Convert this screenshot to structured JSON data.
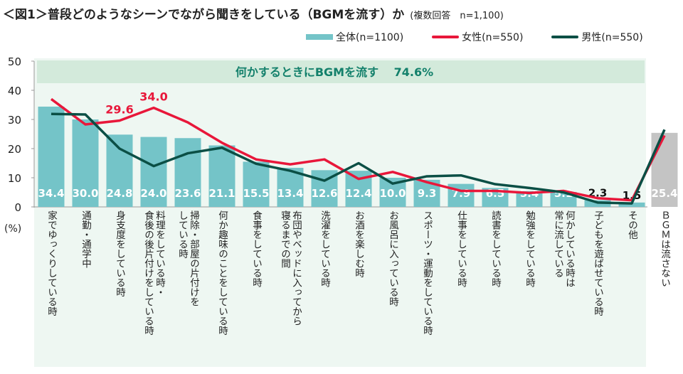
{
  "title": "＜図1＞普段どのようなシーンでながら聞きをしている（BGMを流す）か",
  "subtitle": "(複数回答　n=1,100)",
  "chart_data": {
    "type": "bar+line",
    "title": "＜図1＞普段どのようなシーンでながら聞きをしている（BGMを流す）か",
    "subtitle": "(複数回答　n=1,100)",
    "ylabel": "(%)",
    "ylim": [
      0,
      50
    ],
    "yticks": [
      0,
      10,
      20,
      30,
      40,
      50
    ],
    "legend_position": "top-right",
    "banner": "何かするときにBGMを流す　 74.6%",
    "categories": [
      "家でゆっくりしている時",
      "通勤・通学中",
      "身支度をしている時",
      "料理をしている時・\n食後の後片付けをしている時",
      "掃除・部屋の片付けを\nしている時",
      "何か趣味のことをしている時",
      "食事をしている時",
      "布団やベッドに入ってから\n寝るまでの間",
      "洗濯をしている時",
      "お酒を楽しむ時",
      "お風呂に入っている時",
      "スポーツ・運動をしている時",
      "仕事をしている時",
      "読書をしている時",
      "勉強をしている時",
      "何かしている時は\n常に流している",
      "子どもを遊ばせている時",
      "その他",
      "ＢＧＭは流さない"
    ],
    "series": [
      {
        "name": "全体(n=1100)",
        "type": "bar",
        "color": "#74c4c8",
        "last_color": "#c4c4c4",
        "values": [
          34.4,
          30.0,
          24.8,
          24.0,
          23.6,
          21.1,
          15.5,
          13.4,
          12.6,
          12.4,
          10.0,
          9.3,
          7.9,
          6.5,
          5.4,
          5.1,
          2.3,
          1.5,
          25.4
        ],
        "labels": [
          "34.4",
          "30.0",
          "24.8",
          "24.0",
          "23.6",
          "21.1",
          "15.5",
          "13.4",
          "12.6",
          "12.4",
          "10.0",
          "9.3",
          "7.9",
          "6.5",
          "5.4",
          "5.1",
          "2.3",
          "1.5",
          "25.4"
        ]
      },
      {
        "name": "女性(n=550)",
        "type": "line",
        "color": "#e8173a",
        "values": [
          37.0,
          28.3,
          29.6,
          34.0,
          29.0,
          22.0,
          16.3,
          14.6,
          16.3,
          9.6,
          12.0,
          8.5,
          5.5,
          5.5,
          4.8,
          5.5,
          3.0,
          2.3,
          24.5
        ]
      },
      {
        "name": "男性(n=550)",
        "type": "line",
        "color": "#0b4f45",
        "values": [
          31.9,
          31.7,
          20.0,
          14.0,
          18.4,
          20.3,
          14.8,
          12.4,
          9.0,
          15.0,
          8.0,
          10.5,
          10.8,
          7.8,
          6.5,
          5.0,
          1.5,
          1.2,
          26.5
        ]
      }
    ],
    "annotations": [
      {
        "series": "女性(n=550)",
        "category": "身支度をしている時",
        "text": "29.6"
      },
      {
        "series": "女性(n=550)",
        "category": "料理をしている時・\n食後の後片付けをしている時",
        "text": "34.0"
      }
    ],
    "colors": {
      "plot_bg": "#eef7f2",
      "banner_bg": "#d3eadb",
      "banner_text": "#13806b"
    }
  }
}
